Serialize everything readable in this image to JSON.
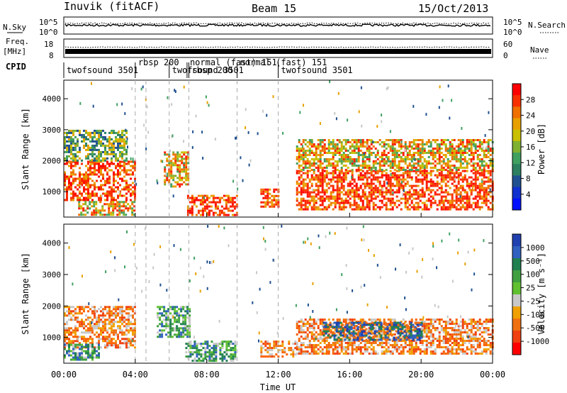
{
  "header": {
    "station": "Inuvik (fitACF)",
    "beam": "Beam 15",
    "date": "15/Oct/2013"
  },
  "noise_panel": {
    "left_label": "N.Sky",
    "right_label": "N.Search",
    "y_ticks": [
      "10^5",
      "10^0"
    ],
    "right_ticks": [
      "10^5",
      "10^0"
    ]
  },
  "freq_panel": {
    "left_label_1": "Freq.",
    "left_label_2": "[MHz]",
    "y_ticks": [
      "18",
      "8"
    ],
    "right_label": "Nave",
    "right_ticks": [
      "60",
      "0"
    ]
  },
  "cpid": {
    "label": "CPID",
    "segments": [
      {
        "text": "twofsound 3501",
        "start_h": 0.0,
        "end_h": 4.0
      },
      {
        "text": "rbsp 200",
        "start_h": 4.0,
        "end_h": 5.9
      },
      {
        "text": "twofsound 3501",
        "start_h": 5.9,
        "end_h": 7.0
      },
      {
        "text": "rbsp 200",
        "start_h": 7.0,
        "end_h": 8.2
      },
      {
        "text": "normal (fast) 151",
        "start_h": 6.9,
        "end_h": 9.7
      },
      {
        "text": "normal (fast) 151",
        "start_h": 9.7,
        "end_h": 12.0
      },
      {
        "text": "twofsound 3501",
        "start_h": 12.0,
        "end_h": 24.0
      }
    ]
  },
  "chart_data": [
    {
      "type": "heatmap",
      "title": "Power",
      "ylabel": "Slant Range [km]",
      "xlim": [
        0,
        24
      ],
      "ylim": [
        180,
        4600
      ],
      "y_ticks": [
        1000,
        2000,
        3000,
        4000
      ],
      "colorbar": {
        "label": "Power [dB]",
        "ticks": [
          "28",
          "24",
          "20",
          "16",
          "12",
          "8",
          "4"
        ],
        "colors": [
          "#ff0000",
          "#f83000",
          "#f07000",
          "#e8a000",
          "#c8c000",
          "#80b030",
          "#40a060",
          "#2c8060",
          "#205090",
          "#1030d0",
          "#0010ff"
        ]
      },
      "regions": [
        {
          "x0": 0.0,
          "x1": 4.0,
          "y0": 700,
          "y1": 2000,
          "level": "high"
        },
        {
          "x0": 0.8,
          "x1": 4.0,
          "y0": 250,
          "y1": 700,
          "level": "mid"
        },
        {
          "x0": 0.0,
          "x1": 3.5,
          "y0": 2000,
          "y1": 3000,
          "level": "low"
        },
        {
          "x0": 5.6,
          "x1": 7.0,
          "y0": 1200,
          "y1": 2300,
          "level": "mid"
        },
        {
          "x0": 6.9,
          "x1": 9.7,
          "y0": 250,
          "y1": 900,
          "level": "high"
        },
        {
          "x0": 11.0,
          "x1": 12.0,
          "y0": 500,
          "y1": 1100,
          "level": "high"
        },
        {
          "x0": 13.0,
          "x1": 24.0,
          "y0": 450,
          "y1": 1700,
          "level": "high"
        },
        {
          "x0": 13.0,
          "x1": 24.0,
          "y0": 1700,
          "y1": 2700,
          "level": "mid"
        }
      ]
    },
    {
      "type": "heatmap",
      "title": "Velocity",
      "ylabel": "Slant Range [km]",
      "xlabel": "Time UT",
      "xlim": [
        0,
        24
      ],
      "ylim": [
        180,
        4600
      ],
      "y_ticks": [
        1000,
        2000,
        3000,
        4000
      ],
      "x_ticks": [
        "00:00",
        "04:00",
        "08:00",
        "12:00",
        "16:00",
        "20:00",
        "00:00"
      ],
      "colorbar": {
        "label": "Velocity [m s⁻¹]",
        "ticks": [
          "1000",
          "500",
          "100",
          "25",
          "-25",
          "-100",
          "-500",
          "-1000"
        ],
        "colors": [
          "#2040b0",
          "#3060c0",
          "#208050",
          "#40a040",
          "#60c030",
          "#c8c8c8",
          "#f0a000",
          "#f07010",
          "#f04010",
          "#ff0000"
        ]
      },
      "regions": [
        {
          "x0": 0.0,
          "x1": 4.0,
          "y0": 700,
          "y1": 2000,
          "level": "neg"
        },
        {
          "x0": 0.0,
          "x1": 2.0,
          "y0": 300,
          "y1": 800,
          "level": "pos"
        },
        {
          "x0": 5.2,
          "x1": 7.0,
          "y0": 1000,
          "y1": 2000,
          "level": "pos"
        },
        {
          "x0": 6.8,
          "x1": 9.6,
          "y0": 280,
          "y1": 900,
          "level": "pos"
        },
        {
          "x0": 11.0,
          "x1": 13.0,
          "y0": 400,
          "y1": 900,
          "level": "neg"
        },
        {
          "x0": 13.0,
          "x1": 24.0,
          "y0": 500,
          "y1": 1600,
          "level": "neg"
        },
        {
          "x0": 14.5,
          "x1": 20.0,
          "y0": 900,
          "y1": 1500,
          "level": "pos_strong"
        }
      ]
    }
  ]
}
